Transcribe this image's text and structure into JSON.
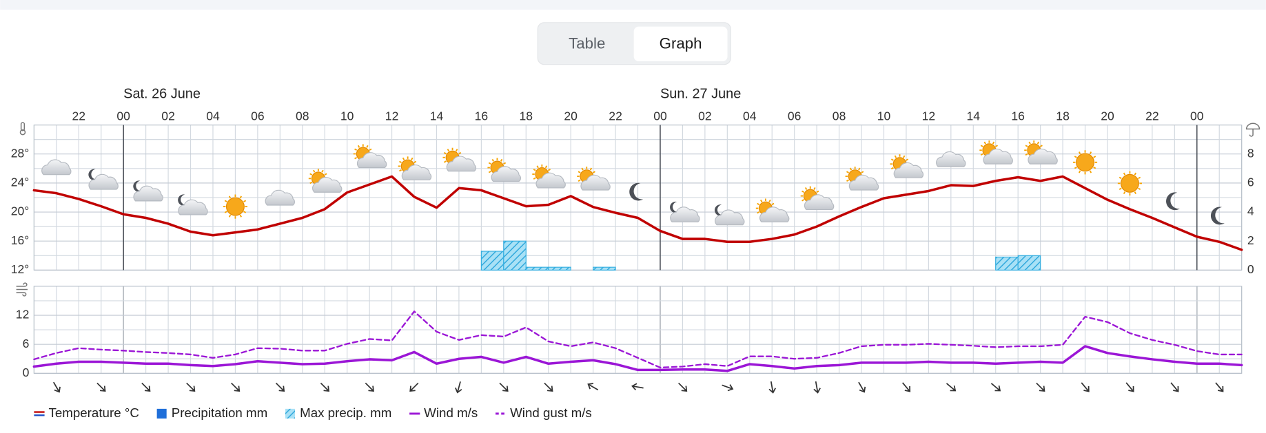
{
  "toggle": {
    "options": [
      "Table",
      "Graph"
    ],
    "selected_index": 1
  },
  "chart_data": [
    {
      "type": "line",
      "x": [
        -4,
        -3,
        -2,
        -1,
        0,
        1,
        2,
        3,
        4,
        5,
        6,
        7,
        8,
        9,
        10,
        11,
        12,
        13,
        14,
        15,
        16,
        17,
        18,
        19,
        20,
        21,
        22,
        23,
        24,
        25,
        26,
        27,
        28,
        29,
        30,
        31,
        32,
        33,
        34,
        35,
        36,
        37,
        38,
        39,
        40,
        41,
        42,
        43,
        44,
        45,
        46,
        47,
        48,
        49,
        50
      ],
      "xlim": [
        -4,
        50
      ],
      "xticks": [
        {
          "value": -2,
          "label": "22"
        },
        {
          "value": 0,
          "label": "00"
        },
        {
          "value": 2,
          "label": "02"
        },
        {
          "value": 4,
          "label": "04"
        },
        {
          "value": 6,
          "label": "06"
        },
        {
          "value": 8,
          "label": "08"
        },
        10,
        12,
        14,
        16,
        18,
        20,
        22,
        {
          "value": 24,
          "label": "00"
        },
        {
          "value": 26,
          "label": "02"
        },
        {
          "value": 28,
          "label": "04"
        },
        {
          "value": 30,
          "label": "06"
        },
        {
          "value": 32,
          "label": "08"
        },
        {
          "value": 34,
          "label": "10"
        },
        {
          "value": 36,
          "label": "12"
        },
        {
          "value": 38,
          "label": "14"
        },
        {
          "value": 40,
          "label": "16"
        },
        {
          "value": 42,
          "label": "18"
        },
        {
          "value": 44,
          "label": "20"
        },
        {
          "value": 46,
          "label": "22"
        },
        {
          "value": 48,
          "label": "00"
        }
      ],
      "day_labels": [
        {
          "value": 0,
          "label": "Sat. 26 June"
        },
        {
          "value": 24,
          "label": "Sun. 27 June"
        }
      ],
      "day_lines": [
        0,
        24,
        48
      ],
      "ylim": [
        12,
        32
      ],
      "yticks": [
        {
          "value": 12,
          "label": "12°"
        },
        {
          "value": 16,
          "label": "16°"
        },
        {
          "value": 20,
          "label": "20°"
        },
        {
          "value": 24,
          "label": "24°"
        },
        {
          "value": 28,
          "label": "28°"
        }
      ],
      "minor_yticks": [
        14,
        18,
        22,
        26,
        30,
        32
      ],
      "y2lim": [
        0,
        10
      ],
      "y2ticks": [
        0,
        2,
        4,
        6,
        8
      ],
      "series": [
        {
          "name": "Temperature °C",
          "color": "#c00000",
          "cold_color": "#1e50c8",
          "values": [
            23.0,
            22.6,
            21.8,
            20.8,
            19.7,
            19.2,
            18.4,
            17.3,
            16.8,
            17.2,
            17.6,
            18.4,
            19.2,
            20.4,
            22.7,
            23.8,
            24.9,
            22.1,
            20.6,
            23.3,
            23.0,
            21.9,
            20.8,
            21.0,
            22.2,
            20.7,
            19.9,
            19.2,
            17.4,
            16.3,
            16.3,
            15.9,
            15.9,
            16.3,
            16.9,
            18.0,
            19.4,
            20.7,
            21.9,
            22.4,
            22.9,
            23.7,
            23.6,
            24.3,
            24.8,
            24.3,
            24.9,
            23.3,
            21.7,
            20.4,
            19.2,
            17.9,
            16.6,
            15.9,
            14.8
          ]
        },
        {
          "name": "Precipitation mm",
          "kind": "bar",
          "axis": "y2",
          "color": "#1f6fd9",
          "x": [],
          "values": []
        },
        {
          "name": "Max precip. mm",
          "kind": "bar",
          "axis": "y2",
          "hatched": true,
          "color": "#33aee0",
          "x": [
            16,
            17,
            18,
            19,
            21,
            39,
            40
          ],
          "values": [
            1.3,
            2.0,
            0.2,
            0.2,
            0.2,
            0.9,
            1.0
          ]
        }
      ],
      "weather_icons": {
        "x": [
          -3,
          -1,
          1,
          3,
          5,
          7,
          9,
          11,
          13,
          15,
          17,
          19,
          21,
          23,
          25,
          27,
          29,
          31,
          33,
          35,
          37,
          39,
          41,
          43,
          45,
          47,
          49
        ],
        "values": [
          "cloud",
          "moon-cloud",
          "moon-cloud",
          "moon-cloud",
          "sun",
          "cloud",
          "sun-cloud",
          "sun-cloud",
          "sun-cloud",
          "sun-cloud",
          "sun-cloud",
          "sun-cloud",
          "sun-cloud",
          "moon",
          "moon-cloud",
          "moon-cloud",
          "sun-cloud",
          "sun-cloud",
          "sun-cloud",
          "sun-cloud",
          "cloud",
          "sun-cloud",
          "sun-cloud",
          "sun",
          "sun",
          "moon",
          "moon"
        ]
      }
    },
    {
      "type": "line",
      "x": [
        -4,
        -3,
        -2,
        -1,
        0,
        1,
        2,
        3,
        4,
        5,
        6,
        7,
        8,
        9,
        10,
        11,
        12,
        13,
        14,
        15,
        16,
        17,
        18,
        19,
        20,
        21,
        22,
        23,
        24,
        25,
        26,
        27,
        28,
        29,
        30,
        31,
        32,
        33,
        34,
        35,
        36,
        37,
        38,
        39,
        40,
        41,
        42,
        43,
        44,
        45,
        46,
        47,
        48,
        49,
        50
      ],
      "xlim": [
        -4,
        50
      ],
      "ylim": [
        0,
        18
      ],
      "yticks": [
        0,
        6,
        12
      ],
      "minor_yticks": [
        3,
        9,
        15
      ],
      "series": [
        {
          "name": "Wind m/s",
          "color": "#9b16d6",
          "values": [
            1.4,
            2.0,
            2.4,
            2.4,
            2.2,
            2.0,
            2.0,
            1.7,
            1.5,
            1.9,
            2.5,
            2.2,
            1.9,
            2.0,
            2.5,
            2.9,
            2.7,
            4.4,
            2.0,
            3.0,
            3.4,
            2.2,
            3.4,
            2.0,
            2.4,
            2.7,
            1.9,
            0.7,
            0.7,
            0.8,
            0.8,
            0.5,
            1.9,
            1.5,
            1.0,
            1.5,
            1.7,
            2.2,
            2.2,
            2.2,
            2.4,
            2.2,
            2.2,
            2.0,
            2.2,
            2.4,
            2.2,
            5.6,
            4.2,
            3.5,
            2.9,
            2.4,
            2.0,
            2.0,
            1.7
          ]
        },
        {
          "name": "Wind gust m/s",
          "color": "#9b16d6",
          "dash": true,
          "values": [
            2.9,
            4.2,
            5.2,
            4.9,
            4.7,
            4.4,
            4.2,
            3.9,
            3.2,
            3.9,
            5.2,
            5.1,
            4.7,
            4.7,
            6.1,
            7.1,
            6.8,
            12.8,
            8.6,
            6.9,
            7.9,
            7.6,
            9.5,
            6.6,
            5.6,
            6.4,
            5.2,
            3.2,
            1.2,
            1.4,
            1.9,
            1.5,
            3.5,
            3.5,
            3.0,
            3.2,
            4.2,
            5.6,
            5.9,
            5.9,
            6.1,
            5.9,
            5.7,
            5.4,
            5.6,
            5.6,
            5.9,
            11.7,
            10.6,
            8.3,
            6.9,
            5.9,
            4.6,
            3.9,
            3.9
          ]
        }
      ],
      "wind_direction": {
        "x": [
          -3,
          -1,
          1,
          3,
          5,
          7,
          9,
          11,
          13,
          15,
          17,
          19,
          21,
          23,
          25,
          27,
          29,
          31,
          33,
          35,
          37,
          39,
          41,
          43,
          45,
          47,
          49
        ],
        "values": [
          150,
          135,
          135,
          135,
          135,
          135,
          135,
          135,
          225,
          195,
          135,
          135,
          300,
          280,
          135,
          110,
          170,
          170,
          150,
          140,
          130,
          130,
          135,
          140,
          140,
          140,
          140
        ]
      }
    }
  ]
}
